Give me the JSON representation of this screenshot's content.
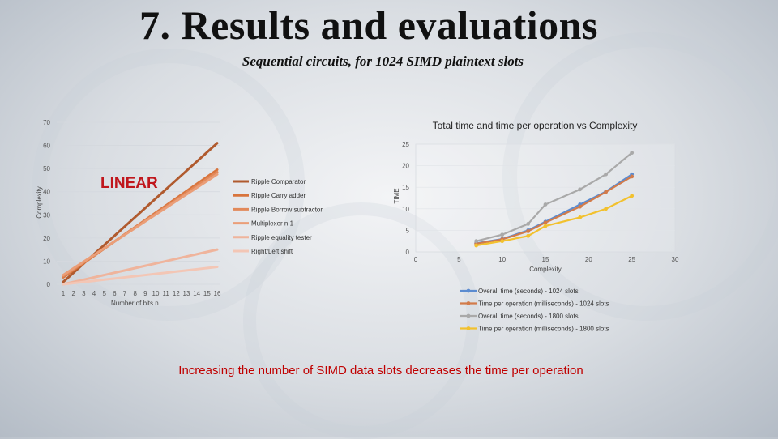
{
  "slide": {
    "title": "7. Results and evaluations",
    "subtitle": "Sequential circuits, for 1024 SIMD plaintext slots",
    "footnote": "Increasing the number of SIMD data slots decreases the time per operation"
  },
  "colors": {
    "ripple_comparator": "#b05a2e",
    "ripple_carry_adder": "#d8743c",
    "ripple_borrow_subtractor": "#e2895a",
    "multiplexer": "#ea9e78",
    "ripple_equality_tester": "#efb49c",
    "right_left_shift": "#f3c6b5",
    "overall_1024": "#5b8bd0",
    "per_op_1024": "#d27b4a",
    "overall_1800": "#a9a9a9",
    "per_op_1800": "#f2c12e",
    "note_red": "#c00000"
  },
  "chart_data": [
    {
      "type": "line",
      "title": "",
      "annotation": "LINEAR",
      "xlabel": "Number of bits n",
      "ylabel": "Complexity",
      "x": [
        1,
        2,
        3,
        4,
        5,
        6,
        7,
        8,
        9,
        10,
        11,
        12,
        13,
        14,
        15,
        16
      ],
      "x_tick_labels": [
        "1",
        "2",
        "3",
        "4",
        "5",
        "6",
        "7",
        "8",
        "9",
        "10",
        "11",
        "12",
        "13",
        "14",
        "15",
        "16"
      ],
      "y_ticks": [
        0,
        10,
        20,
        30,
        40,
        50,
        60,
        70
      ],
      "ylim": [
        0,
        70
      ],
      "legend_position": "right",
      "series": [
        {
          "name": "Ripple Comparator",
          "color_key": "ripple_comparator",
          "values": [
            1,
            5,
            9,
            13,
            17,
            21,
            25,
            29,
            33,
            37,
            41,
            45,
            49,
            53,
            57,
            61
          ]
        },
        {
          "name": "Ripple Carry adder",
          "color_key": "ripple_carry_adder",
          "values": [
            3,
            6.1,
            9.2,
            12.3,
            15.4,
            18.5,
            21.6,
            24.7,
            27.8,
            30.9,
            34,
            37.1,
            40.2,
            43.3,
            46.4,
            49.5
          ]
        },
        {
          "name": "Ripple Borrow subtractor",
          "color_key": "ripple_borrow_subtractor",
          "values": [
            3.5,
            6.5,
            9.5,
            12.5,
            15.5,
            18.5,
            21.5,
            24.5,
            27.5,
            30.5,
            33.5,
            36.5,
            39.5,
            42.5,
            45.5,
            48.5
          ]
        },
        {
          "name": "Multiplexer n:1",
          "color_key": "multiplexer",
          "values": [
            4,
            6.9,
            9.8,
            12.7,
            15.6,
            18.5,
            21.4,
            24.3,
            27.2,
            30.1,
            33,
            35.9,
            38.8,
            41.7,
            44.6,
            47.5
          ]
        },
        {
          "name": "Ripple equality tester",
          "color_key": "ripple_equality_tester",
          "values": [
            0,
            1,
            2,
            3,
            4,
            5,
            6,
            7,
            8,
            9,
            10,
            11,
            12,
            13,
            14,
            15
          ]
        },
        {
          "name": "Right/Left shift",
          "color_key": "right_left_shift",
          "values": [
            0,
            0.5,
            1,
            1.5,
            2,
            2.5,
            3,
            3.5,
            4,
            4.5,
            5,
            5.5,
            6,
            6.5,
            7,
            7.5
          ]
        }
      ]
    },
    {
      "type": "line",
      "title": "Total time and time per operation vs Complexity",
      "xlabel": "Complexity",
      "ylabel": "TIME",
      "x_ticks": [
        0,
        5,
        10,
        15,
        20,
        25,
        30
      ],
      "y_ticks": [
        0,
        5,
        10,
        15,
        20,
        25
      ],
      "xlim": [
        0,
        30
      ],
      "ylim": [
        0,
        25
      ],
      "legend_position": "bottom",
      "series": [
        {
          "name": "Overall time (seconds) - 1024 slots",
          "color_key": "overall_1024",
          "x": [
            7,
            10,
            13,
            15,
            19,
            22,
            25
          ],
          "values": [
            2,
            3,
            5,
            7,
            11,
            14,
            18
          ]
        },
        {
          "name": "Time per operation (milliseconds) - 1024 slots",
          "color_key": "per_op_1024",
          "x": [
            7,
            10,
            13,
            15,
            19,
            22,
            25
          ],
          "values": [
            1.9,
            2.9,
            4.8,
            6.8,
            10.5,
            13.9,
            17.5
          ]
        },
        {
          "name": "Overall time (seconds) - 1800 slots",
          "color_key": "overall_1800",
          "x": [
            7,
            10,
            13,
            15,
            19,
            22,
            25
          ],
          "values": [
            2.5,
            4,
            6.5,
            11,
            14.5,
            18,
            23
          ]
        },
        {
          "name": "Time per operation (milliseconds) - 1800 slots",
          "color_key": "per_op_1800",
          "x": [
            7,
            10,
            13,
            15,
            19,
            22,
            25
          ],
          "values": [
            1.5,
            2.5,
            3.7,
            6,
            8,
            10,
            13
          ]
        }
      ]
    }
  ]
}
